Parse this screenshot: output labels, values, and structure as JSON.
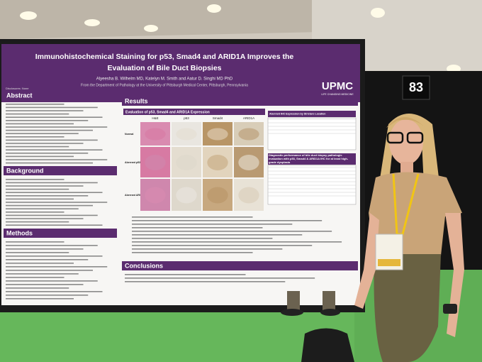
{
  "poster": {
    "title_lines": [
      "Immunohistochemical Staining for p53, Smad4 and ARID1A Improves the",
      "Evaluation of Bile Duct Biopsies"
    ],
    "authors": "Alyeesha B. Wilhelm MD, Katelyn M. Smith and Aatur D. Singhi MD PhD",
    "affiliation": "From the Department of Pathology at the University of Pittsburgh Medical Center, Pittsburgh, Pennsylvania",
    "logo": "UPMC",
    "logo_tagline": "LIFE CHANGING MEDICINE",
    "disclosure": "Disclosures: None",
    "sections": {
      "abstract": "Abstract",
      "background": "Background",
      "methods": "Methods",
      "results": "Results",
      "conclusions": "Conclusions"
    },
    "figure": {
      "title": "Evaluation of p53, Smad4 and ARID1A Expression",
      "columns": [
        "H&E",
        "p53",
        "Smad4",
        "ARID1A"
      ],
      "rows": [
        "Normal",
        "Aberrant p53 + Smad4",
        "Aberrant ARID1A"
      ]
    },
    "tables": [
      "Aberrant IHC Expression by Stricture Location",
      "Diagnostic performance of bile duct biopsy pathologic evaluation with p53, Smad4 & ARID1A IHC for at least high-grade dysplasia"
    ]
  },
  "board_number": "83"
}
